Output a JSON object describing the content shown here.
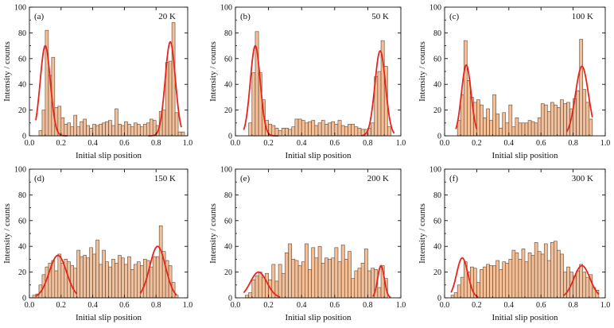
{
  "figure": {
    "xlabel": "Initial slip position",
    "ylabel": "Intensity / counts",
    "colors": {
      "bar_fill": "#f4bf96",
      "bar_edge": "#5b4636",
      "fit_line": "#e8241c",
      "axis": "#111111"
    }
  },
  "chart_data": [
    {
      "type": "bar",
      "panel_label": "(a)",
      "temperature": "20 K",
      "xlim": [
        0,
        1
      ],
      "ylim": [
        0,
        100
      ],
      "xticks": [
        "0.0",
        "0.2",
        "0.4",
        "0.6",
        "0.8",
        "1.0"
      ],
      "yticks": [
        "0",
        "20",
        "40",
        "60",
        "80",
        "100"
      ],
      "xlabel": "Initial slip position",
      "ylabel": "Intensity / counts",
      "bin_width": 0.02,
      "bin_starts": [
        0.06,
        0.08,
        0.1,
        0.12,
        0.14,
        0.16,
        0.18,
        0.2,
        0.22,
        0.24,
        0.26,
        0.28,
        0.3,
        0.32,
        0.34,
        0.36,
        0.38,
        0.4,
        0.42,
        0.44,
        0.46,
        0.48,
        0.5,
        0.52,
        0.54,
        0.56,
        0.58,
        0.6,
        0.62,
        0.64,
        0.66,
        0.68,
        0.7,
        0.72,
        0.74,
        0.76,
        0.78,
        0.8,
        0.82,
        0.84,
        0.86,
        0.88,
        0.9,
        0.92,
        0.94,
        0.96
      ],
      "values": [
        4,
        20,
        82,
        47,
        61,
        22,
        23,
        14,
        9,
        10,
        7,
        16,
        7,
        11,
        13,
        8,
        6,
        9,
        8,
        9,
        10,
        11,
        12,
        8,
        21,
        9,
        8,
        11,
        9,
        7,
        10,
        9,
        7,
        9,
        10,
        13,
        12,
        8,
        19,
        20,
        57,
        58,
        88,
        18,
        3,
        3
      ],
      "fits": [
        {
          "center": 0.1,
          "amplitude": 70,
          "sigma": 0.032,
          "x_range": [
            0.04,
            0.24
          ]
        },
        {
          "center": 0.89,
          "amplitude": 73,
          "sigma": 0.032,
          "x_range": [
            0.75,
            0.96
          ]
        }
      ]
    },
    {
      "type": "bar",
      "panel_label": "(b)",
      "temperature": "50 K",
      "xlim": [
        0,
        1
      ],
      "ylim": [
        0,
        100
      ],
      "xticks": [
        "0.0",
        "0.2",
        "0.4",
        "0.6",
        "0.8",
        "1.0"
      ],
      "yticks": [
        "0",
        "20",
        "40",
        "60",
        "80",
        "100"
      ],
      "xlabel": "Initial slip position",
      "ylabel": "Intensity / counts",
      "bin_width": 0.02,
      "bin_starts": [
        0.08,
        0.1,
        0.12,
        0.14,
        0.16,
        0.18,
        0.2,
        0.22,
        0.24,
        0.26,
        0.28,
        0.3,
        0.32,
        0.34,
        0.36,
        0.38,
        0.4,
        0.42,
        0.44,
        0.46,
        0.48,
        0.5,
        0.52,
        0.54,
        0.56,
        0.58,
        0.6,
        0.62,
        0.64,
        0.66,
        0.68,
        0.7,
        0.72,
        0.74,
        0.76,
        0.78,
        0.8,
        0.82,
        0.84,
        0.86,
        0.88,
        0.9,
        0.92
      ],
      "values": [
        10,
        49,
        81,
        49,
        28,
        12,
        9,
        8,
        6,
        4,
        6,
        6,
        5,
        7,
        13,
        13,
        12,
        10,
        11,
        12,
        8,
        10,
        12,
        9,
        10,
        11,
        9,
        12,
        8,
        7,
        9,
        9,
        7,
        6,
        5,
        5,
        6,
        10,
        46,
        50,
        74,
        54,
        7
      ],
      "fits": [
        {
          "center": 0.12,
          "amplitude": 70,
          "sigma": 0.03,
          "x_range": [
            0.05,
            0.26
          ]
        },
        {
          "center": 0.875,
          "amplitude": 66,
          "sigma": 0.032,
          "x_range": [
            0.76,
            0.96
          ]
        }
      ]
    },
    {
      "type": "bar",
      "panel_label": "(c)",
      "temperature": "100 K",
      "xlim": [
        0,
        1
      ],
      "ylim": [
        0,
        100
      ],
      "xticks": [
        "0.0",
        "0.2",
        "0.4",
        "0.6",
        "0.8",
        "1.0"
      ],
      "yticks": [
        "0",
        "20",
        "40",
        "60",
        "80",
        "100"
      ],
      "xlabel": "Initial slip position",
      "ylabel": "Intensity / counts",
      "bin_width": 0.02,
      "bin_starts": [
        0.08,
        0.1,
        0.12,
        0.14,
        0.16,
        0.18,
        0.2,
        0.22,
        0.24,
        0.26,
        0.28,
        0.3,
        0.32,
        0.34,
        0.36,
        0.38,
        0.4,
        0.42,
        0.44,
        0.46,
        0.48,
        0.5,
        0.52,
        0.54,
        0.56,
        0.58,
        0.6,
        0.62,
        0.64,
        0.66,
        0.68,
        0.7,
        0.72,
        0.74,
        0.76,
        0.78,
        0.8,
        0.82,
        0.84,
        0.86,
        0.88,
        0.9
      ],
      "values": [
        12,
        32,
        74,
        43,
        30,
        26,
        28,
        24,
        14,
        21,
        12,
        32,
        17,
        6,
        18,
        10,
        24,
        7,
        14,
        10,
        10,
        10,
        12,
        11,
        10,
        14,
        25,
        24,
        19,
        26,
        24,
        22,
        28,
        25,
        26,
        21,
        29,
        35,
        75,
        36,
        26,
        13
      ],
      "fits": [
        {
          "center": 0.135,
          "amplitude": 55,
          "sigma": 0.03,
          "x_range": [
            0.07,
            0.2
          ]
        },
        {
          "center": 0.855,
          "amplitude": 54,
          "sigma": 0.04,
          "x_range": [
            0.76,
            0.92
          ]
        }
      ]
    },
    {
      "type": "bar",
      "panel_label": "(d)",
      "temperature": "150 K",
      "xlim": [
        0,
        1
      ],
      "ylim": [
        0,
        100
      ],
      "xticks": [
        "0.0",
        "0.2",
        "0.4",
        "0.6",
        "0.8",
        "1.0"
      ],
      "yticks": [
        "0",
        "20",
        "40",
        "60",
        "80",
        "100"
      ],
      "xlabel": "Initial slip position",
      "ylabel": "Intensity / counts",
      "bin_width": 0.02,
      "bin_starts": [
        0.02,
        0.04,
        0.06,
        0.08,
        0.1,
        0.12,
        0.14,
        0.16,
        0.18,
        0.2,
        0.22,
        0.24,
        0.26,
        0.28,
        0.3,
        0.32,
        0.34,
        0.36,
        0.38,
        0.4,
        0.42,
        0.44,
        0.46,
        0.48,
        0.5,
        0.52,
        0.54,
        0.56,
        0.58,
        0.6,
        0.62,
        0.64,
        0.66,
        0.68,
        0.7,
        0.72,
        0.74,
        0.76,
        0.78,
        0.8,
        0.82,
        0.84,
        0.86,
        0.88,
        0.9,
        0.92
      ],
      "values": [
        2,
        3,
        10,
        18,
        24,
        27,
        29,
        21,
        34,
        27,
        30,
        28,
        25,
        23,
        37,
        32,
        33,
        31,
        39,
        34,
        45,
        26,
        37,
        28,
        24,
        30,
        27,
        33,
        31,
        26,
        32,
        22,
        26,
        28,
        25,
        30,
        29,
        24,
        32,
        32,
        56,
        36,
        29,
        25,
        12,
        2
      ],
      "fits": [
        {
          "center": 0.18,
          "amplitude": 33,
          "sigma": 0.055,
          "x_range": [
            0.04,
            0.3
          ]
        },
        {
          "center": 0.81,
          "amplitude": 40,
          "sigma": 0.05,
          "x_range": [
            0.7,
            0.93
          ]
        }
      ]
    },
    {
      "type": "bar",
      "panel_label": "(e)",
      "temperature": "200 K",
      "xlim": [
        0,
        1
      ],
      "ylim": [
        0,
        100
      ],
      "xticks": [
        "0.0",
        "0.2",
        "0.4",
        "0.6",
        "0.8",
        "1.0"
      ],
      "yticks": [
        "0",
        "20",
        "40",
        "60",
        "80",
        "100"
      ],
      "xlabel": "Initial slip position",
      "ylabel": "Intensity / counts",
      "bin_width": 0.02,
      "bin_starts": [
        0.06,
        0.08,
        0.1,
        0.12,
        0.14,
        0.16,
        0.18,
        0.2,
        0.22,
        0.24,
        0.26,
        0.28,
        0.3,
        0.32,
        0.34,
        0.36,
        0.38,
        0.4,
        0.42,
        0.44,
        0.46,
        0.48,
        0.5,
        0.52,
        0.54,
        0.56,
        0.58,
        0.6,
        0.62,
        0.64,
        0.66,
        0.68,
        0.7,
        0.72,
        0.74,
        0.76,
        0.78,
        0.8,
        0.82,
        0.84,
        0.86,
        0.88,
        0.9
      ],
      "values": [
        2,
        4,
        14,
        17,
        20,
        16,
        19,
        14,
        26,
        13,
        26,
        19,
        35,
        42,
        30,
        29,
        25,
        28,
        42,
        22,
        39,
        31,
        40,
        27,
        31,
        30,
        31,
        39,
        28,
        41,
        30,
        36,
        15,
        21,
        23,
        27,
        38,
        21,
        23,
        22,
        8,
        25,
        15
      ],
      "fits": [
        {
          "center": 0.14,
          "amplitude": 20,
          "sigma": 0.05,
          "x_range": [
            0.05,
            0.27
          ]
        },
        {
          "center": 0.88,
          "amplitude": 25,
          "sigma": 0.02,
          "x_range": [
            0.83,
            0.94
          ]
        }
      ]
    },
    {
      "type": "bar",
      "panel_label": "(f)",
      "temperature": "300 K",
      "xlim": [
        0,
        1
      ],
      "ylim": [
        0,
        100
      ],
      "xticks": [
        "0.0",
        "0.2",
        "0.4",
        "0.6",
        "0.8",
        "1.0"
      ],
      "yticks": [
        "0",
        "20",
        "40",
        "60",
        "80",
        "100"
      ],
      "xlabel": "Initial slip position",
      "ylabel": "Intensity / counts",
      "bin_width": 0.02,
      "bin_starts": [
        0.04,
        0.06,
        0.08,
        0.1,
        0.12,
        0.14,
        0.16,
        0.18,
        0.2,
        0.22,
        0.24,
        0.26,
        0.28,
        0.3,
        0.32,
        0.34,
        0.36,
        0.38,
        0.4,
        0.42,
        0.44,
        0.46,
        0.48,
        0.5,
        0.52,
        0.54,
        0.56,
        0.58,
        0.6,
        0.62,
        0.64,
        0.66,
        0.68,
        0.7,
        0.72,
        0.74,
        0.76,
        0.78,
        0.8,
        0.82,
        0.84,
        0.86,
        0.88,
        0.9,
        0.92,
        0.94
      ],
      "values": [
        2,
        4,
        10,
        16,
        28,
        20,
        24,
        23,
        12,
        22,
        24,
        26,
        25,
        25,
        29,
        22,
        28,
        27,
        30,
        37,
        35,
        30,
        38,
        28,
        35,
        33,
        43,
        36,
        34,
        42,
        29,
        43,
        44,
        37,
        34,
        20,
        24,
        20,
        17,
        21,
        26,
        20,
        16,
        18,
        8,
        6
      ],
      "fits": [
        {
          "center": 0.11,
          "amplitude": 31,
          "sigma": 0.035,
          "x_range": [
            0.04,
            0.21
          ]
        },
        {
          "center": 0.855,
          "amplitude": 25,
          "sigma": 0.05,
          "x_range": [
            0.74,
            0.96
          ]
        }
      ]
    }
  ]
}
